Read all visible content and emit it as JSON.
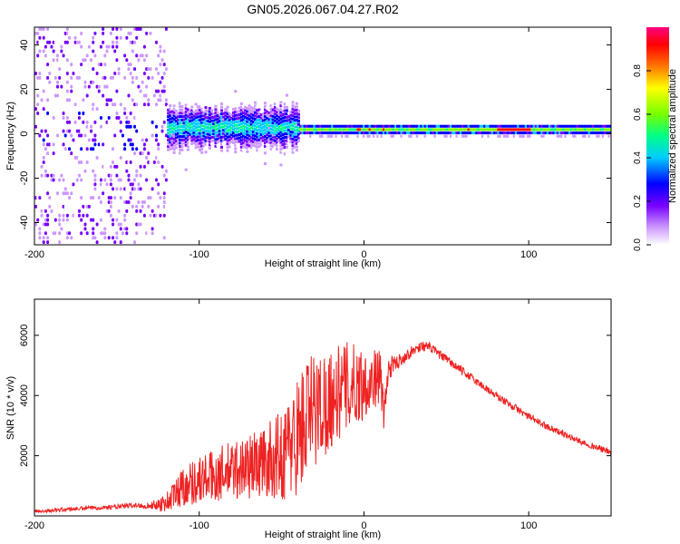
{
  "title": "GN05.2026.067.04.27.R02",
  "chart_data": [
    {
      "type": "heatmap",
      "title": "GN05.2026.067.04.27.R02",
      "xlabel": "Height of straight line (km)",
      "ylabel": "Frequency (Hz)",
      "xlim": [
        -200,
        150
      ],
      "ylim": [
        -50,
        48
      ],
      "xticks": [
        -200,
        -100,
        0,
        100
      ],
      "yticks": [
        -40,
        -20,
        0,
        20,
        40
      ],
      "colorbar": {
        "label": "Normalized spectral amplitude",
        "range": [
          0,
          1
        ],
        "ticks": [
          0.0,
          0.2,
          0.4,
          0.6,
          0.8
        ],
        "colors": [
          "#ffffff",
          "#cc99ff",
          "#7700ff",
          "#0000ff",
          "#00ccff",
          "#00ff88",
          "#77ff00",
          "#ffff00",
          "#ff7700",
          "#ff0000",
          "#ff0080"
        ]
      },
      "features": [
        {
          "x_range": [
            -200,
            -120
          ],
          "description_value": "broadband noise",
          "freq_spread": [
            -50,
            48
          ],
          "amplitude": 0.25
        },
        {
          "x_range": [
            -120,
            -40
          ],
          "center_freq": 2,
          "bandwidth": 12,
          "amplitude": 0.45
        },
        {
          "x_range": [
            -40,
            150
          ],
          "center_freq": 1,
          "bandwidth": 4,
          "amplitude": 0.6
        },
        {
          "x_range": [
            80,
            100
          ],
          "center_freq": 1,
          "bandwidth": 3,
          "amplitude": 0.9
        }
      ]
    },
    {
      "type": "line",
      "xlabel": "Height of straight line (km)",
      "ylabel": "SNR (10 * v/v)",
      "xlim": [
        -200,
        150
      ],
      "ylim": [
        0,
        7200
      ],
      "xticks": [
        -200,
        -100,
        0,
        100
      ],
      "yticks": [
        2000,
        4000,
        6000
      ],
      "color": "#ee2222",
      "series": [
        {
          "name": "SNR",
          "x": [
            -200,
            -190,
            -180,
            -170,
            -160,
            -150,
            -140,
            -130,
            -120,
            -115,
            -110,
            -100,
            -90,
            -80,
            -70,
            -60,
            -50,
            -45,
            -40,
            -35,
            -30,
            -25,
            -20,
            -15,
            -10,
            -5,
            0,
            5,
            10,
            12,
            15,
            20,
            25,
            30,
            35,
            40,
            45,
            50,
            60,
            70,
            80,
            90,
            100,
            110,
            120,
            130,
            140,
            150
          ],
          "values": [
            150,
            180,
            220,
            250,
            280,
            300,
            350,
            330,
            450,
            700,
            1000,
            1200,
            1350,
            1500,
            1650,
            1800,
            2000,
            2300,
            2700,
            3200,
            3500,
            3700,
            3900,
            4100,
            4300,
            4350,
            4400,
            4500,
            4700,
            3300,
            4900,
            5100,
            5300,
            5500,
            5650,
            5600,
            5400,
            5200,
            4800,
            4400,
            4000,
            3650,
            3300,
            3000,
            2750,
            2500,
            2300,
            2100
          ],
          "noise": [
            60,
            60,
            70,
            70,
            70,
            80,
            90,
            90,
            350,
            500,
            700,
            800,
            900,
            1000,
            1100,
            1200,
            1500,
            1800,
            2000,
            2200,
            2000,
            1800,
            1700,
            1600,
            1500,
            1400,
            1200,
            1000,
            900,
            600,
            400,
            250,
            200,
            180,
            170,
            160,
            150,
            150,
            140,
            130,
            130,
            120,
            120,
            110,
            110,
            100,
            100,
            100
          ]
        }
      ]
    }
  ]
}
